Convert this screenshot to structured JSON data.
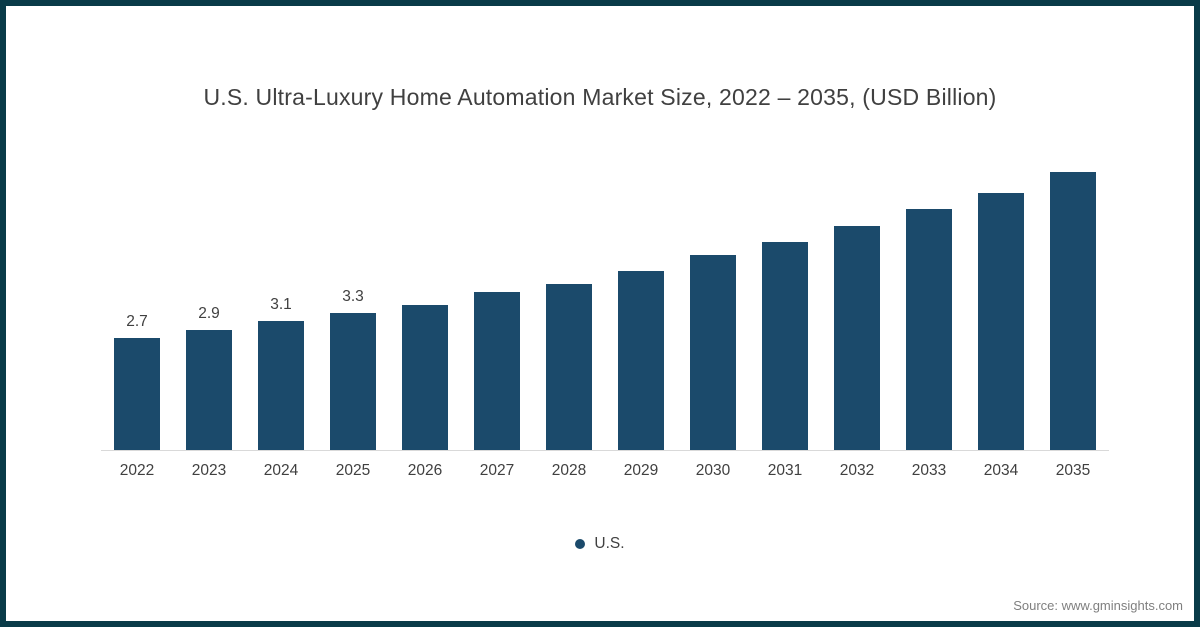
{
  "chart_data": {
    "type": "bar",
    "title": "U.S. Ultra-Luxury Home Automation Market Size, 2022 – 2035, (USD Billion)",
    "categories": [
      "2022",
      "2023",
      "2024",
      "2025",
      "2026",
      "2027",
      "2028",
      "2029",
      "2030",
      "2031",
      "2032",
      "2033",
      "2034",
      "2035"
    ],
    "values": [
      2.7,
      2.9,
      3.1,
      3.3,
      3.5,
      3.8,
      4.0,
      4.3,
      4.7,
      5.0,
      5.4,
      5.8,
      6.2,
      6.7
    ],
    "data_labels": [
      "2.7",
      "2.9",
      "3.1",
      "3.3",
      "",
      "",
      "",
      "",
      "",
      "",
      "",
      "",
      "",
      ""
    ],
    "series_name": "U.S.",
    "xlabel": "",
    "ylabel": "",
    "ylim": [
      0,
      7.2
    ],
    "grid": false,
    "legend_position": "bottom"
  },
  "legend": {
    "label": "U.S."
  },
  "source": {
    "text": "Source: www.gminsights.com"
  },
  "colors": {
    "bar": "#1b4a6b",
    "frame": "#093b48",
    "axis_line": "#d9d9d9",
    "text": "#404040",
    "muted_text": "#7f7f7f"
  }
}
